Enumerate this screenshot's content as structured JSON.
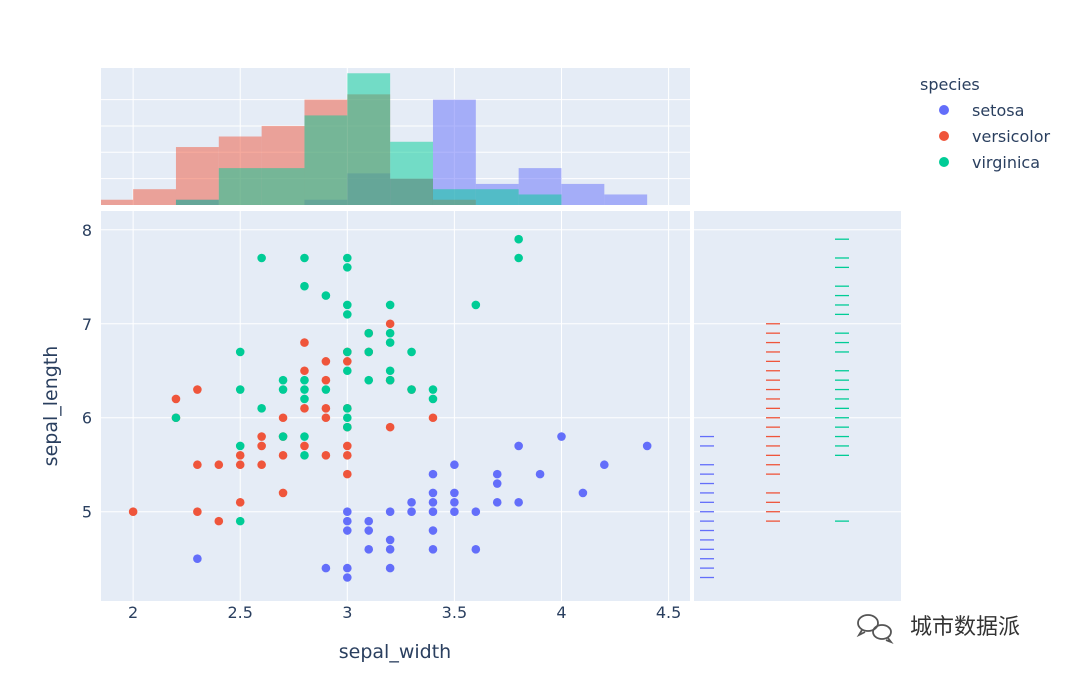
{
  "colors": {
    "setosa": "#636efa",
    "versicolor": "#EF553B",
    "virginica": "#00cc96",
    "plot_bg": "#e5ecf6",
    "grid": "#ffffff"
  },
  "legend": {
    "title": "species",
    "items": [
      "setosa",
      "versicolor",
      "virginica"
    ],
    "placement": "top-right"
  },
  "watermark": {
    "text": "城市数据派",
    "icon": "wechat-icon"
  },
  "chart_data": {
    "type": "scatter",
    "xlabel": "sepal_width",
    "ylabel": "sepal_length",
    "xlim": [
      1.85,
      4.6
    ],
    "ylim": [
      4.05,
      8.2
    ],
    "xticks": [
      2,
      2.5,
      3,
      3.5,
      4,
      4.5
    ],
    "xtick_labels": [
      "2",
      "2.5",
      "3",
      "3.5",
      "4",
      "4.5"
    ],
    "yticks": [
      5,
      6,
      7,
      8
    ],
    "ytick_labels": [
      "5",
      "6",
      "7",
      "8"
    ],
    "grid": true,
    "marginal_x": "histogram",
    "marginal_y": "rug",
    "histogram": {
      "bin_width": 0.2,
      "ymax": 26,
      "series": [
        {
          "name": "setosa",
          "counts": [
            [
              2.2,
              1
            ],
            [
              2.8,
              1
            ],
            [
              3.0,
              6
            ],
            [
              3.2,
              5
            ],
            [
              3.4,
              20
            ],
            [
              3.6,
              4
            ],
            [
              3.8,
              7
            ],
            [
              4.0,
              4
            ],
            [
              4.2,
              2
            ]
          ]
        },
        {
          "name": "versicolor",
          "counts": [
            [
              1.8,
              1
            ],
            [
              2.0,
              3
            ],
            [
              2.2,
              11
            ],
            [
              2.4,
              13
            ],
            [
              2.6,
              15
            ],
            [
              2.8,
              20
            ],
            [
              3.0,
              21
            ],
            [
              3.2,
              5
            ],
            [
              3.4,
              1
            ]
          ]
        },
        {
          "name": "virginica",
          "counts": [
            [
              2.2,
              1
            ],
            [
              2.4,
              7
            ],
            [
              2.6,
              7
            ],
            [
              2.8,
              17
            ],
            [
              3.0,
              25
            ],
            [
              3.2,
              12
            ],
            [
              3.4,
              3
            ],
            [
              3.6,
              3
            ],
            [
              3.8,
              2
            ]
          ]
        }
      ]
    },
    "series": [
      {
        "name": "setosa",
        "points": [
          [
            2.3,
            4.5
          ],
          [
            2.9,
            4.4
          ],
          [
            3.0,
            4.3
          ],
          [
            3.0,
            4.4
          ],
          [
            3.0,
            4.8
          ],
          [
            3.0,
            4.9
          ],
          [
            3.0,
            5.0
          ],
          [
            3.1,
            4.9
          ],
          [
            3.1,
            4.8
          ],
          [
            3.1,
            4.6
          ],
          [
            3.2,
            4.4
          ],
          [
            3.2,
            4.6
          ],
          [
            3.2,
            4.7
          ],
          [
            3.2,
            5.0
          ],
          [
            3.3,
            5.0
          ],
          [
            3.3,
            5.1
          ],
          [
            3.4,
            4.6
          ],
          [
            3.4,
            4.8
          ],
          [
            3.4,
            5.0
          ],
          [
            3.4,
            5.1
          ],
          [
            3.4,
            5.2
          ],
          [
            3.4,
            5.4
          ],
          [
            3.5,
            5.0
          ],
          [
            3.5,
            5.1
          ],
          [
            3.5,
            5.2
          ],
          [
            3.5,
            5.5
          ],
          [
            3.6,
            4.6
          ],
          [
            3.6,
            5.0
          ],
          [
            3.7,
            5.1
          ],
          [
            3.7,
            5.3
          ],
          [
            3.7,
            5.4
          ],
          [
            3.8,
            5.1
          ],
          [
            3.8,
            5.7
          ],
          [
            3.9,
            5.4
          ],
          [
            4.0,
            5.8
          ],
          [
            4.1,
            5.2
          ],
          [
            4.2,
            5.5
          ],
          [
            4.4,
            5.7
          ]
        ]
      },
      {
        "name": "versicolor",
        "points": [
          [
            2.0,
            5.0
          ],
          [
            2.2,
            6.0
          ],
          [
            2.2,
            6.2
          ],
          [
            2.3,
            5.0
          ],
          [
            2.3,
            5.5
          ],
          [
            2.3,
            6.3
          ],
          [
            2.4,
            4.9
          ],
          [
            2.4,
            5.5
          ],
          [
            2.5,
            5.1
          ],
          [
            2.5,
            5.5
          ],
          [
            2.5,
            5.6
          ],
          [
            2.6,
            5.5
          ],
          [
            2.6,
            5.7
          ],
          [
            2.6,
            5.8
          ],
          [
            2.7,
            5.2
          ],
          [
            2.7,
            5.6
          ],
          [
            2.7,
            5.8
          ],
          [
            2.7,
            6.0
          ],
          [
            2.8,
            5.7
          ],
          [
            2.8,
            6.1
          ],
          [
            2.8,
            6.5
          ],
          [
            2.8,
            6.8
          ],
          [
            2.9,
            5.6
          ],
          [
            2.9,
            6.0
          ],
          [
            2.9,
            6.1
          ],
          [
            2.9,
            6.4
          ],
          [
            2.9,
            6.6
          ],
          [
            3.0,
            5.4
          ],
          [
            3.0,
            5.6
          ],
          [
            3.0,
            5.7
          ],
          [
            3.0,
            5.9
          ],
          [
            3.0,
            6.1
          ],
          [
            3.0,
            6.6
          ],
          [
            3.0,
            6.7
          ],
          [
            3.1,
            6.7
          ],
          [
            3.1,
            6.9
          ],
          [
            3.2,
            5.9
          ],
          [
            3.2,
            6.4
          ],
          [
            3.2,
            7.0
          ],
          [
            3.3,
            6.3
          ],
          [
            3.4,
            6.0
          ]
        ]
      },
      {
        "name": "virginica",
        "points": [
          [
            2.2,
            6.0
          ],
          [
            2.5,
            4.9
          ],
          [
            2.5,
            5.7
          ],
          [
            2.5,
            6.3
          ],
          [
            2.5,
            6.7
          ],
          [
            2.6,
            6.1
          ],
          [
            2.6,
            7.7
          ],
          [
            2.7,
            5.8
          ],
          [
            2.7,
            6.3
          ],
          [
            2.7,
            6.4
          ],
          [
            2.8,
            5.6
          ],
          [
            2.8,
            5.8
          ],
          [
            2.8,
            6.2
          ],
          [
            2.8,
            6.3
          ],
          [
            2.8,
            6.4
          ],
          [
            2.8,
            7.4
          ],
          [
            2.8,
            7.7
          ],
          [
            2.9,
            6.3
          ],
          [
            2.9,
            7.3
          ],
          [
            3.0,
            5.9
          ],
          [
            3.0,
            6.0
          ],
          [
            3.0,
            6.1
          ],
          [
            3.0,
            6.5
          ],
          [
            3.0,
            6.7
          ],
          [
            3.0,
            7.1
          ],
          [
            3.0,
            7.2
          ],
          [
            3.0,
            7.6
          ],
          [
            3.0,
            7.7
          ],
          [
            3.1,
            6.4
          ],
          [
            3.1,
            6.7
          ],
          [
            3.1,
            6.9
          ],
          [
            3.2,
            6.4
          ],
          [
            3.2,
            6.5
          ],
          [
            3.2,
            6.8
          ],
          [
            3.2,
            6.9
          ],
          [
            3.2,
            7.2
          ],
          [
            3.3,
            6.3
          ],
          [
            3.3,
            6.7
          ],
          [
            3.4,
            6.2
          ],
          [
            3.4,
            6.3
          ],
          [
            3.6,
            7.2
          ],
          [
            3.8,
            7.7
          ],
          [
            3.8,
            7.9
          ]
        ]
      }
    ],
    "rug": [
      {
        "name": "setosa",
        "values": [
          4.3,
          4.4,
          4.5,
          4.6,
          4.7,
          4.8,
          4.9,
          5.0,
          5.1,
          5.2,
          5.3,
          5.4,
          5.5,
          5.7,
          5.8
        ]
      },
      {
        "name": "versicolor",
        "values": [
          4.9,
          5.0,
          5.1,
          5.2,
          5.4,
          5.5,
          5.6,
          5.7,
          5.8,
          5.9,
          6.0,
          6.1,
          6.2,
          6.3,
          6.4,
          6.5,
          6.6,
          6.7,
          6.8,
          6.9,
          7.0
        ]
      },
      {
        "name": "virginica",
        "values": [
          4.9,
          5.6,
          5.7,
          5.8,
          5.9,
          6.0,
          6.1,
          6.2,
          6.3,
          6.4,
          6.5,
          6.7,
          6.8,
          6.9,
          7.1,
          7.2,
          7.3,
          7.4,
          7.6,
          7.7,
          7.9
        ]
      }
    ]
  }
}
